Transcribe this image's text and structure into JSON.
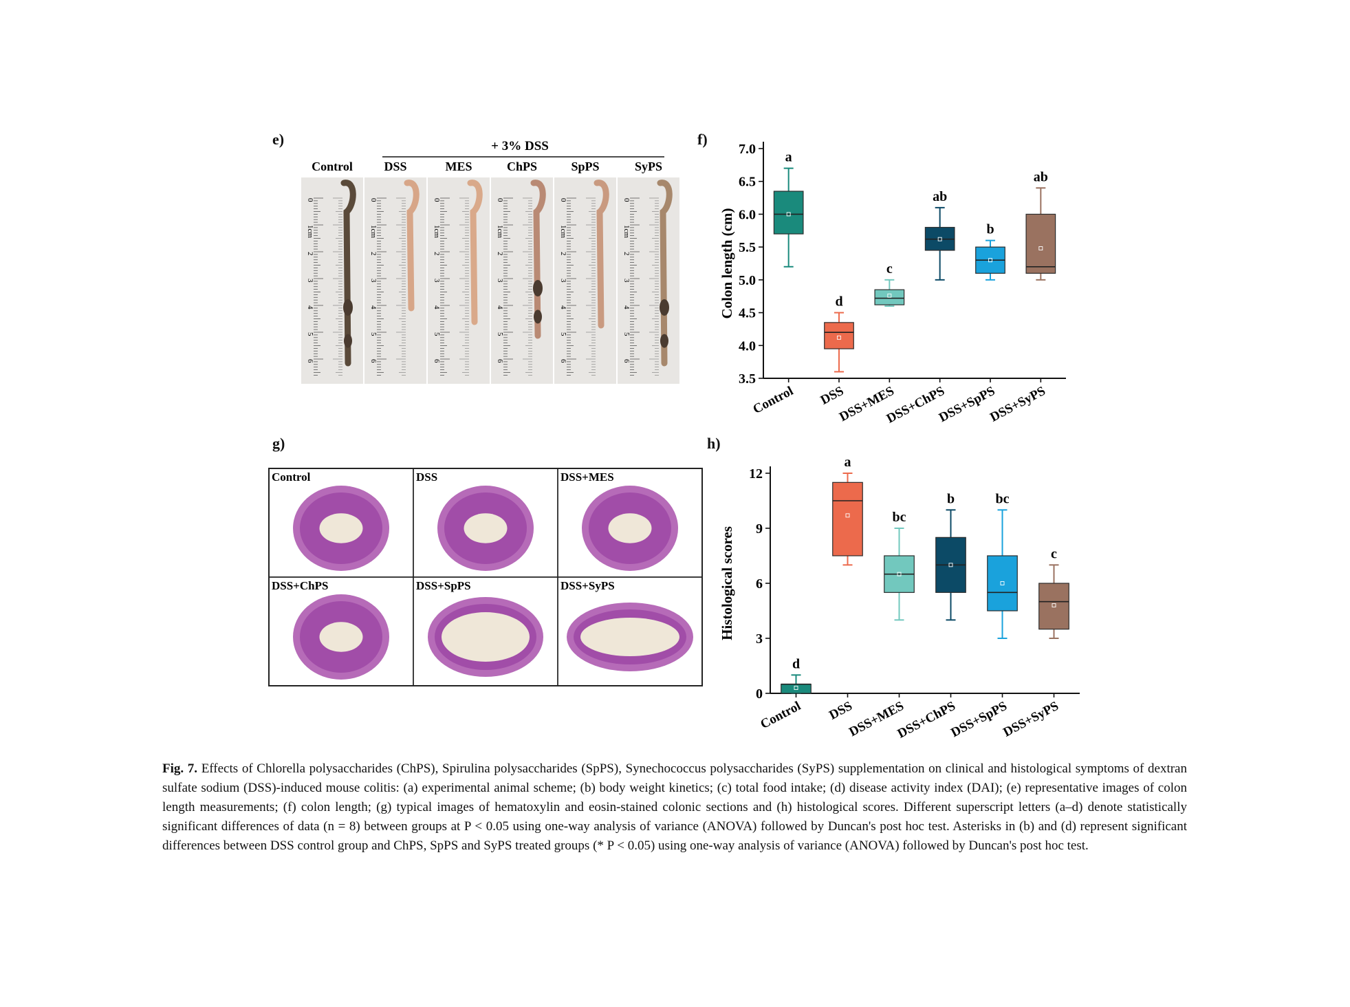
{
  "panels": {
    "e": "e)",
    "f": "f)",
    "g": "g)",
    "h": "h)"
  },
  "panel_e": {
    "header": "+ 3% DSS",
    "groups": [
      "Control",
      "DSS",
      "MES",
      "ChPS",
      "SpPS",
      "SyPS"
    ],
    "ruler_numbers": [
      "0",
      "1cm",
      "2",
      "3",
      "4",
      "5",
      "6"
    ]
  },
  "panel_g": {
    "labels": [
      "Control",
      "DSS",
      "DSS+MES",
      "DSS+ChPS",
      "DSS+SpPS",
      "DSS+SyPS"
    ]
  },
  "chart_data": [
    {
      "id": "f",
      "type": "box",
      "ylabel": "Colon length (cm)",
      "ylim": [
        3.5,
        7.0
      ],
      "yticks": [
        "3.5",
        "4.0",
        "4.5",
        "5.0",
        "5.5",
        "6.0",
        "6.5",
        "7.0"
      ],
      "categories": [
        "Control",
        "DSS",
        "DSS+MES",
        "DSS+ChPS",
        "DSS+SpPS",
        "DSS+SyPS"
      ],
      "colors": [
        "#1a8a7c",
        "#ec6a4c",
        "#72c8be",
        "#0c4a66",
        "#1aa2dc",
        "#9a7260"
      ],
      "boxes": [
        {
          "min": 5.2,
          "q1": 5.7,
          "median": 6.0,
          "q3": 6.35,
          "max": 6.7,
          "mean": 6.0
        },
        {
          "min": 3.6,
          "q1": 3.95,
          "median": 4.2,
          "q3": 4.35,
          "max": 4.5,
          "mean": 4.12
        },
        {
          "min": 4.6,
          "q1": 4.62,
          "median": 4.72,
          "q3": 4.85,
          "max": 5.0,
          "mean": 4.76
        },
        {
          "min": 5.0,
          "q1": 5.45,
          "median": 5.62,
          "q3": 5.8,
          "max": 6.1,
          "mean": 5.62
        },
        {
          "min": 5.0,
          "q1": 5.1,
          "median": 5.3,
          "q3": 5.5,
          "max": 5.6,
          "mean": 5.3
        },
        {
          "min": 5.0,
          "q1": 5.1,
          "median": 5.2,
          "q3": 6.0,
          "max": 6.4,
          "mean": 5.48
        }
      ],
      "letters": [
        "a",
        "d",
        "c",
        "ab",
        "b",
        "ab"
      ]
    },
    {
      "id": "h",
      "type": "box",
      "ylabel": "Histological scores",
      "ylim": [
        0,
        12
      ],
      "yticks": [
        "0",
        "3",
        "6",
        "9",
        "12"
      ],
      "categories": [
        "Control",
        "DSS",
        "DSS+MES",
        "DSS+ChPS",
        "DSS+SpPS",
        "DSS+SyPS"
      ],
      "colors": [
        "#1a8a7c",
        "#ec6a4c",
        "#72c8be",
        "#0c4a66",
        "#1aa2dc",
        "#9a7260"
      ],
      "boxes": [
        {
          "min": 0,
          "q1": 0,
          "median": 0.5,
          "q3": 0.5,
          "max": 1.0,
          "mean": 0.3
        },
        {
          "min": 7.0,
          "q1": 7.5,
          "median": 10.5,
          "q3": 11.5,
          "max": 12.0,
          "mean": 9.7
        },
        {
          "min": 4.0,
          "q1": 5.5,
          "median": 6.5,
          "q3": 7.5,
          "max": 9.0,
          "mean": 6.5
        },
        {
          "min": 4.0,
          "q1": 5.5,
          "median": 7.0,
          "q3": 8.5,
          "max": 10.0,
          "mean": 7.0
        },
        {
          "min": 3.0,
          "q1": 4.5,
          "median": 5.5,
          "q3": 7.5,
          "max": 10.0,
          "mean": 6.0
        },
        {
          "min": 3.0,
          "q1": 3.5,
          "median": 5.0,
          "q3": 6.0,
          "max": 7.0,
          "mean": 4.8
        }
      ],
      "letters": [
        "d",
        "a",
        "bc",
        "b",
        "bc",
        "c"
      ]
    }
  ],
  "caption": {
    "label": "Fig. 7.",
    "text": "Effects of Chlorella polysaccharides (ChPS), Spirulina polysaccharides (SpPS), Synechococcus polysaccharides (SyPS) supplementation on clinical and histological symptoms of dextran sulfate sodium (DSS)-induced mouse colitis: (a) experimental animal scheme; (b) body weight kinetics; (c) total food intake; (d) disease activity index (DAI); (e) representative images of colon length measurements; (f) colon length; (g) typical images of hematoxylin and eosin-stained colonic sections and (h) histological scores. Different superscript letters (a–d) denote statistically significant differences of data (n = 8) between groups at P < 0.05 using one-way analysis of variance (ANOVA) followed by Duncan's post hoc test. Asterisks in (b) and (d) represent significant differences between DSS control group and ChPS, SpPS and SyPS treated groups (* P < 0.05) using one-way analysis of variance (ANOVA) followed by Duncan's post hoc test."
  }
}
